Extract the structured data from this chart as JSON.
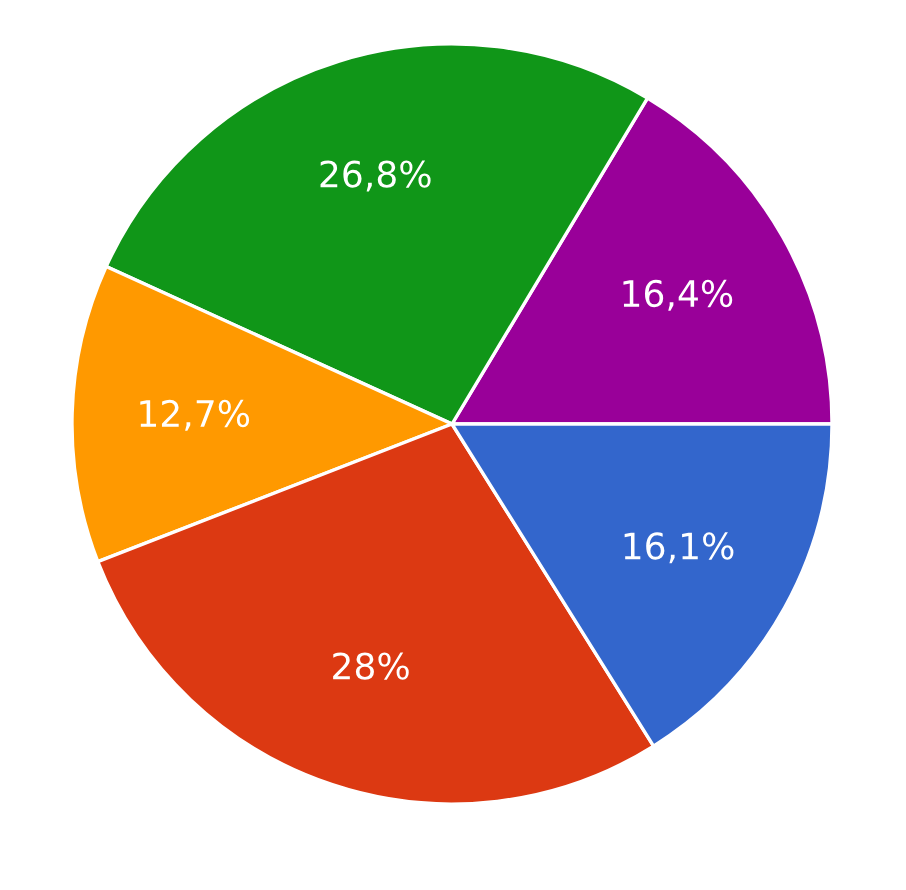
{
  "chart_data": {
    "type": "pie",
    "categories": [
      null,
      null,
      null,
      null,
      null
    ],
    "values": [
      16.4,
      26.8,
      12.7,
      28,
      16.1
    ],
    "colors": [
      "#990099",
      "#109618",
      "#ff9900",
      "#dc3912",
      "#3366cc"
    ],
    "value_labels": [
      "16,4%",
      "26,8%",
      "12,7%",
      "28%",
      "16,1%"
    ]
  }
}
